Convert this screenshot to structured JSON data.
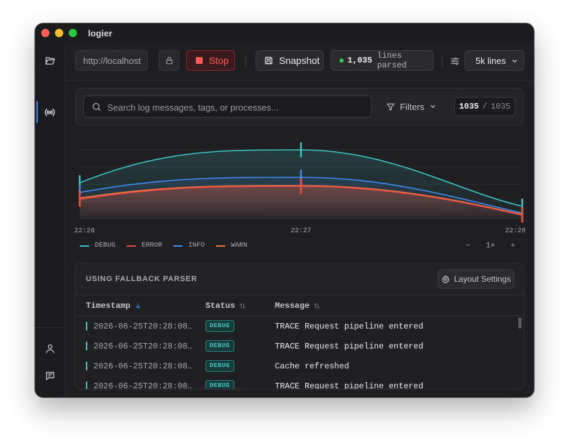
{
  "window": {
    "title": "logier"
  },
  "sidebar": {
    "items": [
      {
        "name": "folder-icon",
        "active": false
      },
      {
        "name": "broadcast-icon",
        "active": true
      },
      {
        "name": "user-icon",
        "active": false
      },
      {
        "name": "message-icon",
        "active": false
      },
      {
        "name": "gear-icon",
        "active": false
      }
    ]
  },
  "toolbar": {
    "url": "http://localhost",
    "stop_label": "Stop",
    "snapshot_label": "Snapshot",
    "lines_parsed_count": "1,035",
    "lines_parsed_label": "lines parsed",
    "lines_select_value": "5k lines"
  },
  "search": {
    "placeholder": "Search log messages, tags, or processes...",
    "filters_label": "Filters",
    "count_shown": "1035",
    "count_total": "1035"
  },
  "chart_data": {
    "type": "area",
    "x": [
      "22:26",
      "22:27",
      "22:28"
    ],
    "series": [
      {
        "name": "DEBUG",
        "color": "#3cc6c5",
        "values": [
          0.52,
          1.0,
          0.18
        ]
      },
      {
        "name": "ERROR",
        "color": "#ee4c47",
        "values": [
          0.28,
          0.47,
          0.05
        ]
      },
      {
        "name": "INFO",
        "color": "#3e8bf5",
        "values": [
          0.38,
          0.6,
          0.08
        ]
      },
      {
        "name": "WARN",
        "color": "#f07b3a",
        "values": [
          0.3,
          0.48,
          0.06
        ]
      }
    ],
    "grid": true
  },
  "zoom": {
    "minus": "−",
    "level": "1×",
    "plus": "+"
  },
  "table": {
    "panel_title": "USING FALLBACK PARSER",
    "layout_settings_label": "Layout Settings",
    "columns": [
      "Timestamp",
      "Status",
      "Message"
    ],
    "rows": [
      {
        "timestamp": "2026-06-25T20:28:08…",
        "status": "DEBUG",
        "message": "TRACE Request pipeline entered"
      },
      {
        "timestamp": "2026-06-25T20:28:08…",
        "status": "DEBUG",
        "message": "TRACE Request pipeline entered"
      },
      {
        "timestamp": "2026-06-25T20:28:08…",
        "status": "DEBUG",
        "message": "Cache refreshed"
      },
      {
        "timestamp": "2026-06-25T20:28:08…",
        "status": "DEBUG",
        "message": "TRACE Request pipeline entered"
      }
    ]
  },
  "colors": {
    "accent": "#3e8bf5",
    "danger": "#ff5a52",
    "debug": "#3cc6c5",
    "success": "#34c759"
  }
}
